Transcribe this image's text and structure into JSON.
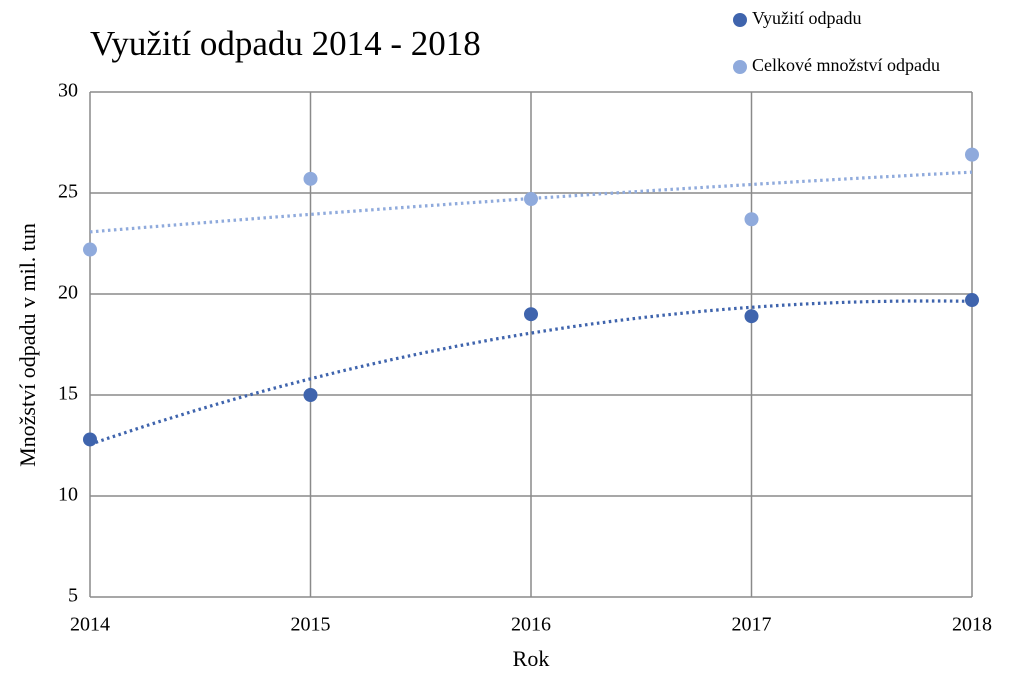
{
  "chart_data": {
    "type": "scatter",
    "title": "Využití odpadu 2014 - 2018",
    "x_label": "Rok",
    "y_label": "Množství odpadu v mil. tun",
    "x": [
      2014,
      2015,
      2016,
      2017,
      2018
    ],
    "series": [
      {
        "name": "Využití odpadu",
        "color": "#3f64ad",
        "values": [
          12.8,
          15,
          19,
          18.9,
          19.7
        ]
      },
      {
        "name": "Celkové množství odpadu",
        "color": "#8faadc",
        "values": [
          22.2,
          25.7,
          24.7,
          23.7,
          26.9
        ]
      }
    ],
    "trendline": {
      "type": "polynomial",
      "order": 2
    },
    "xlim": [
      2014,
      2018
    ],
    "xticks": [
      2014,
      2015,
      2016,
      2017,
      2018
    ],
    "ylim": [
      5,
      30
    ],
    "yticks": [
      5,
      10,
      15,
      20,
      25,
      30
    ],
    "grid": true,
    "legend": "top-right"
  }
}
